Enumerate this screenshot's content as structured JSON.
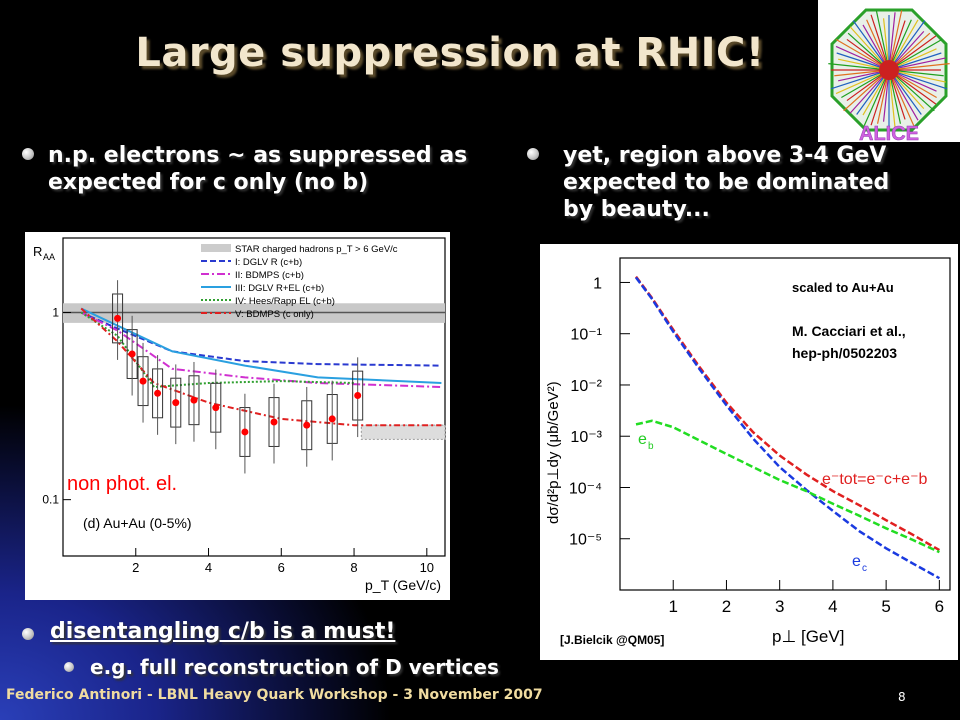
{
  "slide": {
    "title": "Large suppression at RHIC!",
    "bullet_left": "n.p. electrons ~ as suppressed as expected for c only (no b)",
    "bullet_right": "yet, region above 3-4 GeV expected to be dominated by beauty...",
    "bullet_bottom": "disentangling c/b is a must!",
    "sub_bullet": "e.g. full reconstruction of D vertices",
    "footer": "Federico Antinori - LBNL Heavy Quark Workshop - 3 November 2007",
    "page_number": "8",
    "logo_text": "ALICE"
  },
  "colors": {
    "title": "#f2e6cc",
    "footer": "#f0dca0",
    "accent_red": "#ff0000"
  },
  "chart_data": [
    {
      "type": "scatter",
      "ylabel": "R_AA",
      "xlabel": "p_T (GeV/c)",
      "xticks": [
        "2",
        "4",
        "6",
        "8",
        "10"
      ],
      "yticks": [
        "1",
        "0.1"
      ],
      "xlim": [
        0,
        10.5
      ],
      "ylim": [
        0.05,
        2.5
      ],
      "yscale": "log",
      "annotation": "non phot. el.",
      "panel_label": "(d) Au+Au (0-5%)",
      "legend": [
        "STAR charged hadrons p_T > 6 GeV/c",
        "I:  DGLV R (c+b)",
        "II:  BDMPS (c+b)",
        "III: DGLV R+EL (c+b)",
        "IV:  Hees/Rapp EL (c+b)",
        "V:  BDMPS (c only)"
      ],
      "points": [
        {
          "x": 1.5,
          "y": 0.93
        },
        {
          "x": 1.9,
          "y": 0.6
        },
        {
          "x": 2.2,
          "y": 0.43
        },
        {
          "x": 2.6,
          "y": 0.37
        },
        {
          "x": 3.1,
          "y": 0.33
        },
        {
          "x": 3.6,
          "y": 0.34
        },
        {
          "x": 4.2,
          "y": 0.31
        },
        {
          "x": 5.0,
          "y": 0.23
        },
        {
          "x": 5.8,
          "y": 0.26
        },
        {
          "x": 6.7,
          "y": 0.25
        },
        {
          "x": 7.4,
          "y": 0.27
        },
        {
          "x": 8.1,
          "y": 0.36
        }
      ]
    },
    {
      "type": "line",
      "ylabel": "dσ/d²p⊥dy (μb/GeV²)",
      "xlabel": "p⊥ [GeV]",
      "xticks": [
        "1",
        "2",
        "3",
        "4",
        "5",
        "6"
      ],
      "yticks": [
        "1",
        "10⁻¹",
        "10⁻²",
        "10⁻³",
        "10⁻⁴",
        "10⁻⁵"
      ],
      "xlim": [
        0,
        6.2
      ],
      "yscale": "log",
      "ylim": [
        1e-06,
        3
      ],
      "annotations": [
        "scaled to Au+Au",
        "M. Cacciari et al., hep-ph/0502203",
        "[J.Bielcik @QM05]"
      ],
      "series": [
        {
          "name": "e⁻tot=e⁻c+e⁻b",
          "color": "#e02020",
          "x": [
            0.3,
            0.6,
            1,
            1.5,
            2,
            2.5,
            3,
            3.5,
            4,
            4.5,
            5,
            5.5,
            6
          ],
          "y": [
            1.3,
            0.5,
            0.12,
            0.022,
            0.0045,
            0.0012,
            0.00042,
            0.00018,
            8.5e-05,
            4.5e-05,
            2.3e-05,
            1.2e-05,
            6e-06
          ]
        },
        {
          "name": "e⁻c",
          "color": "#1a3ae0",
          "x": [
            0.3,
            0.6,
            1,
            1.5,
            2,
            2.5,
            3,
            3.5,
            4,
            4.5,
            5,
            5.5,
            6
          ],
          "y": [
            1.25,
            0.48,
            0.11,
            0.02,
            0.004,
            0.0009,
            0.00025,
            9e-05,
            3.5e-05,
            1.4e-05,
            6.5e-06,
            3.3e-06,
            1.7e-06
          ]
        },
        {
          "name": "e⁻b",
          "color": "#22dd22",
          "x": [
            0.3,
            0.6,
            1,
            1.5,
            2,
            2.5,
            3,
            3.5,
            4,
            4.5,
            5,
            5.5,
            6
          ],
          "y": [
            0.0017,
            0.002,
            0.0015,
            0.00082,
            0.00045,
            0.00025,
            0.00014,
            8.5e-05,
            4.8e-05,
            2.8e-05,
            1.6e-05,
            9.5e-06,
            5.5e-06
          ]
        }
      ]
    }
  ]
}
